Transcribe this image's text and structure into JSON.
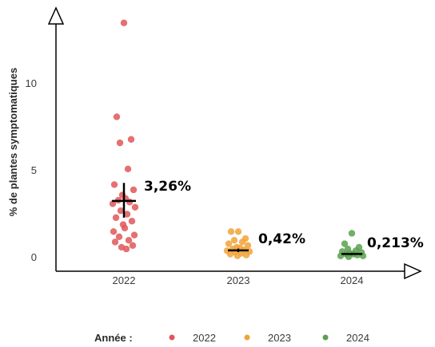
{
  "chart_data": {
    "type": "scatter",
    "ylabel": "% de plantes symptomatiques",
    "ylim": [
      0,
      14
    ],
    "yticks": [
      0,
      5,
      10
    ],
    "categories": [
      "2022",
      "2023",
      "2024"
    ],
    "grid": false,
    "legend": {
      "title": "Année :",
      "placement": "bottom",
      "entries": [
        "2022",
        "2023",
        "2024"
      ]
    },
    "series": [
      {
        "name": "2022",
        "color": "#e15759",
        "values": [
          13.5,
          8.1,
          6.8,
          6.6,
          5.1,
          4.2,
          3.9,
          3.6,
          3.4,
          3.3,
          3.2,
          3.1,
          2.9,
          2.7,
          2.5,
          2.3,
          2.1,
          1.9,
          1.7,
          1.5,
          1.3,
          1.2,
          1.0,
          0.9,
          0.7,
          0.6,
          0.5
        ],
        "mean": 3.26,
        "ci": [
          2.3,
          4.3
        ],
        "annotation": "3,26%"
      },
      {
        "name": "2023",
        "color": "#f1a33a",
        "values": [
          1.5,
          1.5,
          1.1,
          1.0,
          0.9,
          0.8,
          0.7,
          0.6,
          0.55,
          0.5,
          0.45,
          0.4,
          0.35,
          0.3,
          0.25,
          0.2,
          0.15,
          0.1
        ],
        "mean": 0.42,
        "ci": [
          0.32,
          0.52
        ],
        "annotation": "0,42%"
      },
      {
        "name": "2024",
        "color": "#59a14f",
        "values": [
          1.4,
          0.8,
          0.6,
          0.5,
          0.4,
          0.35,
          0.3,
          0.25,
          0.2,
          0.2,
          0.15,
          0.1,
          0.1,
          0.05
        ],
        "mean": 0.213,
        "ci": [
          0.15,
          0.28
        ],
        "annotation": "0,213%"
      }
    ]
  }
}
